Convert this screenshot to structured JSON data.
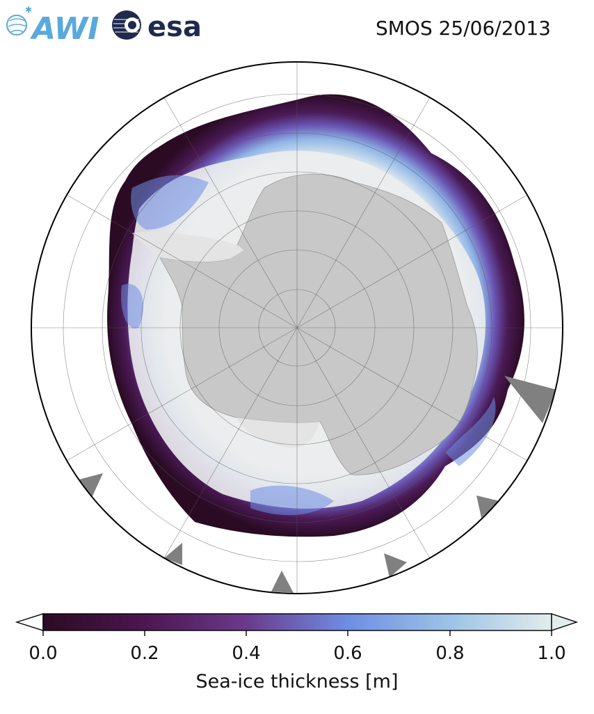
{
  "header": {
    "title": "SMOS 25/06/2013",
    "logos": [
      {
        "name": "AWI",
        "text": "AWI"
      },
      {
        "name": "esa",
        "text": "esa"
      }
    ]
  },
  "map": {
    "projection": "south-polar-stereographic",
    "region": "Antarctica",
    "variable": "sea-ice thickness",
    "land_color": "#c8c8c8",
    "ice_shelf_color": "#e4e4e4",
    "missing_data_color": "#808080",
    "graticule": true
  },
  "colorbar": {
    "label": "Sea-ice thickness [m]",
    "min": 0.0,
    "max": 1.0,
    "extend": "both",
    "ticks": [
      "0.0",
      "0.2",
      "0.4",
      "0.6",
      "0.8",
      "1.0"
    ],
    "colormap": [
      "#2b0b24",
      "#4d1650",
      "#6a3a8c",
      "#6f8ee3",
      "#9cc3e6",
      "#e2ecec"
    ]
  }
}
